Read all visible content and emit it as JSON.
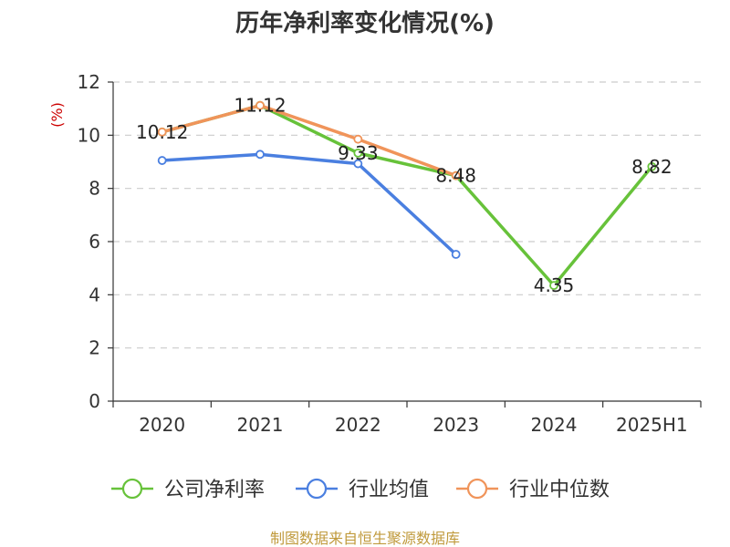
{
  "chart_data": {
    "type": "line",
    "title": "历年净利率变化情况(%)",
    "ylabel": "(%)",
    "xlabel": "",
    "categories": [
      "2020",
      "2021",
      "2022",
      "2023",
      "2024",
      "2025H1"
    ],
    "ylim": [
      0,
      12
    ],
    "yticks": [
      0,
      2,
      4,
      6,
      8,
      10,
      12
    ],
    "grid": "horizontal dashed",
    "legend_position": "bottom",
    "series": [
      {
        "name": "公司净利率",
        "color": "#67c23a",
        "values": [
          10.12,
          11.12,
          9.33,
          8.48,
          4.35,
          8.82
        ],
        "labels": [
          "10.12",
          "11.12",
          "9.33",
          "8.48",
          "4.35",
          "8.82"
        ]
      },
      {
        "name": "行业均值",
        "color": "#4a7fe0",
        "values": [
          9.05,
          9.28,
          8.93,
          5.52,
          null,
          null
        ],
        "labels": []
      },
      {
        "name": "行业中位数",
        "color": "#f0945a",
        "values": [
          10.12,
          11.12,
          9.85,
          8.48,
          null,
          null
        ],
        "labels": []
      }
    ],
    "source": "制图数据来自恒生聚源数据库"
  }
}
